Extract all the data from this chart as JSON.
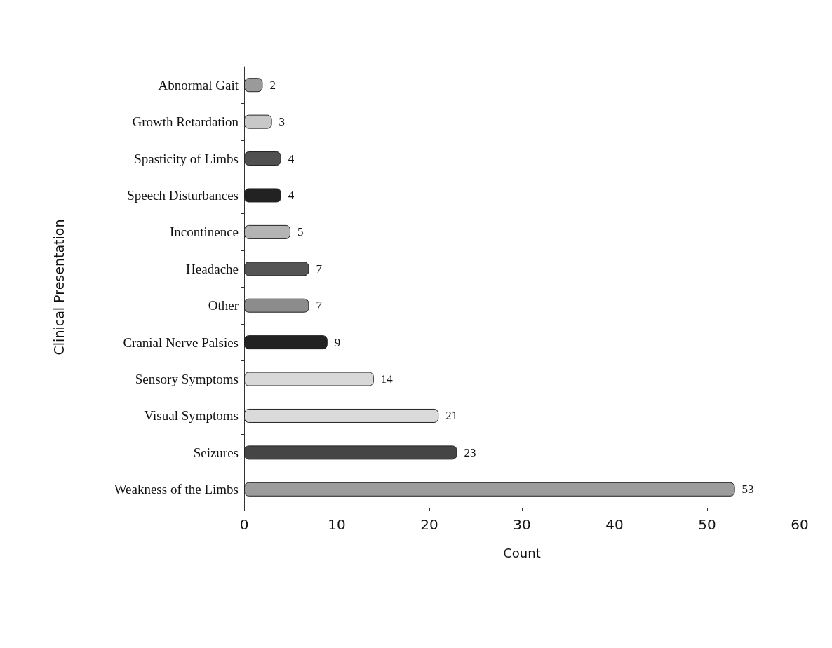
{
  "chart_data": {
    "type": "bar",
    "orientation": "horizontal",
    "categories": [
      "Abnormal Gait",
      "Growth Retardation",
      "Spasticity of Limbs",
      "Speech Disturbances",
      "Incontinence",
      "Headache",
      "Other",
      "Cranial Nerve Palsies",
      "Sensory Symptoms",
      "Visual Symptoms",
      "Seizures",
      "Weakness of the Limbs"
    ],
    "values": [
      2,
      3,
      4,
      4,
      5,
      7,
      7,
      9,
      14,
      21,
      23,
      53
    ],
    "colors": [
      "#9a9a9a",
      "#c8c8c8",
      "#505050",
      "#222222",
      "#b4b4b4",
      "#555555",
      "#8c8c8c",
      "#222222",
      "#d8d8d8",
      "#dadada",
      "#454545",
      "#9c9c9c"
    ],
    "xlim": [
      0,
      60
    ],
    "xticks": [
      0,
      10,
      20,
      30,
      40,
      50,
      60
    ],
    "xlabel": "Count",
    "ylabel": "Clinical Presentation",
    "data_labels": true,
    "grid": false
  }
}
